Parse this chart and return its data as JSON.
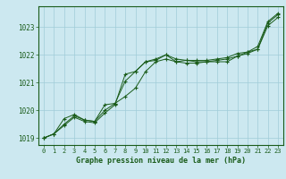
{
  "title": "Graphe pression niveau de la mer (hPa)",
  "background_color": "#cce8f0",
  "plot_background_color": "#cce8f0",
  "grid_color": "#a0ccd8",
  "line_color": "#1a5c1a",
  "text_color": "#1a5c1a",
  "xlim": [
    -0.5,
    23.5
  ],
  "ylim": [
    1018.75,
    1023.75
  ],
  "xticks": [
    0,
    1,
    2,
    3,
    4,
    5,
    6,
    7,
    8,
    9,
    10,
    11,
    12,
    13,
    14,
    15,
    16,
    17,
    18,
    19,
    20,
    21,
    22,
    23
  ],
  "yticks": [
    1019,
    1020,
    1021,
    1022,
    1023
  ],
  "series": [
    [
      1019.0,
      1019.15,
      1019.7,
      1019.85,
      1019.65,
      1019.6,
      1020.2,
      1020.25,
      1021.05,
      1021.4,
      1021.75,
      1021.85,
      1022.0,
      1021.85,
      1021.8,
      1021.8,
      1021.8,
      1021.85,
      1021.9,
      1022.05,
      1022.1,
      1022.2,
      1023.15,
      1023.45
    ],
    [
      1019.0,
      1019.15,
      1019.5,
      1019.8,
      1019.65,
      1019.6,
      1020.0,
      1020.25,
      1020.5,
      1020.8,
      1021.4,
      1021.75,
      1021.85,
      1021.75,
      1021.8,
      1021.75,
      1021.75,
      1021.8,
      1021.85,
      1021.95,
      1022.1,
      1022.3,
      1023.2,
      1023.5
    ],
    [
      1019.0,
      1019.15,
      1019.45,
      1019.75,
      1019.6,
      1019.55,
      1019.9,
      1020.2,
      1021.3,
      1021.4,
      1021.75,
      1021.8,
      1022.0,
      1021.75,
      1021.7,
      1021.7,
      1021.75,
      1021.75,
      1021.75,
      1021.95,
      1022.05,
      1022.2,
      1023.05,
      1023.35
    ]
  ]
}
